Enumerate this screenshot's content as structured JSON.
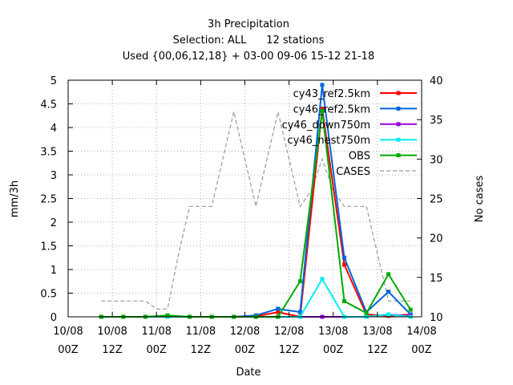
{
  "chart_data": {
    "type": "line",
    "title": [
      "3h Precipitation",
      "Selection: ALL      12 stations",
      "Used {00,06,12,18} + 03-00 09-06 15-12 21-18"
    ],
    "xlabel": "Date",
    "ylabel": "mm/3h",
    "y2label": "No cases",
    "xlim": [
      0,
      32
    ],
    "ylim": [
      0,
      5
    ],
    "y2lim": [
      10,
      40
    ],
    "x_ticks": [
      {
        "x": 0,
        "line1": "10/08",
        "line2": "00Z"
      },
      {
        "x": 4,
        "line1": "10/08",
        "line2": "12Z"
      },
      {
        "x": 8,
        "line1": "11/08",
        "line2": "00Z"
      },
      {
        "x": 12,
        "line1": "11/08",
        "line2": "12Z"
      },
      {
        "x": 16,
        "line1": "12/08",
        "line2": "00Z"
      },
      {
        "x": 20,
        "line1": "12/08",
        "line2": "12Z"
      },
      {
        "x": 24,
        "line1": "13/08",
        "line2": "00Z"
      },
      {
        "x": 28,
        "line1": "13/08",
        "line2": "12Z"
      },
      {
        "x": 32,
        "line1": "14/08",
        "line2": "00Z"
      }
    ],
    "y_ticks": [
      "0",
      "0.5",
      "1",
      "1.5",
      "2",
      "2.5",
      "3",
      "3.5",
      "4",
      "4.5",
      "5"
    ],
    "y2_ticks": [
      "10",
      "15",
      "20",
      "25",
      "30",
      "35",
      "40"
    ],
    "grid": true,
    "legend_position": "top-right",
    "x": [
      3,
      5,
      7,
      9,
      11,
      13,
      15,
      17,
      19,
      21,
      23,
      25,
      27,
      29,
      31
    ],
    "series": [
      {
        "name": "cy43_ref2.5km",
        "color": "#ff0000",
        "values": [
          0,
          0,
          0,
          0.01,
          0,
          0,
          0,
          0.01,
          0.1,
          0,
          4.4,
          1.1,
          0.05,
          0.02,
          0.05
        ]
      },
      {
        "name": "cy46_ref2.5km",
        "color": "#0066dd",
        "values": [
          0,
          0,
          0,
          0.02,
          0,
          0,
          0,
          0.03,
          0.17,
          0.1,
          4.9,
          1.25,
          0.1,
          0.53,
          0.05
        ]
      },
      {
        "name": "cy46_down750m",
        "color": "#9900dd",
        "values": [
          0,
          0,
          0,
          0,
          0,
          0,
          0,
          0,
          0,
          0,
          0,
          0,
          0,
          0.05,
          0.02
        ]
      },
      {
        "name": "cy46_nest750m",
        "color": "#00eeee",
        "values": [
          0,
          0,
          0,
          0,
          0,
          0,
          0,
          0,
          0,
          0,
          0.8,
          0,
          0,
          0.05,
          0
        ]
      },
      {
        "name": "OBS",
        "color": "#00aa00",
        "values": [
          0,
          0,
          0,
          0.03,
          0,
          0,
          0,
          0,
          0,
          0.75,
          4.35,
          0.33,
          0.08,
          0.9,
          0.15
        ]
      }
    ],
    "cases": {
      "name": "CASES",
      "color": "#999999",
      "x": [
        3,
        5,
        7,
        8,
        9,
        10,
        11,
        12,
        13,
        14,
        15,
        16,
        17,
        18,
        19,
        20,
        21,
        22,
        23,
        24,
        25,
        26,
        27,
        28,
        29,
        30,
        31
      ],
      "values": [
        12,
        12,
        12,
        11,
        11,
        18,
        24,
        24,
        24,
        30,
        36,
        30,
        24,
        30,
        36,
        30,
        24,
        26,
        30,
        26,
        24,
        24,
        24,
        18,
        12,
        12,
        12
      ]
    }
  }
}
